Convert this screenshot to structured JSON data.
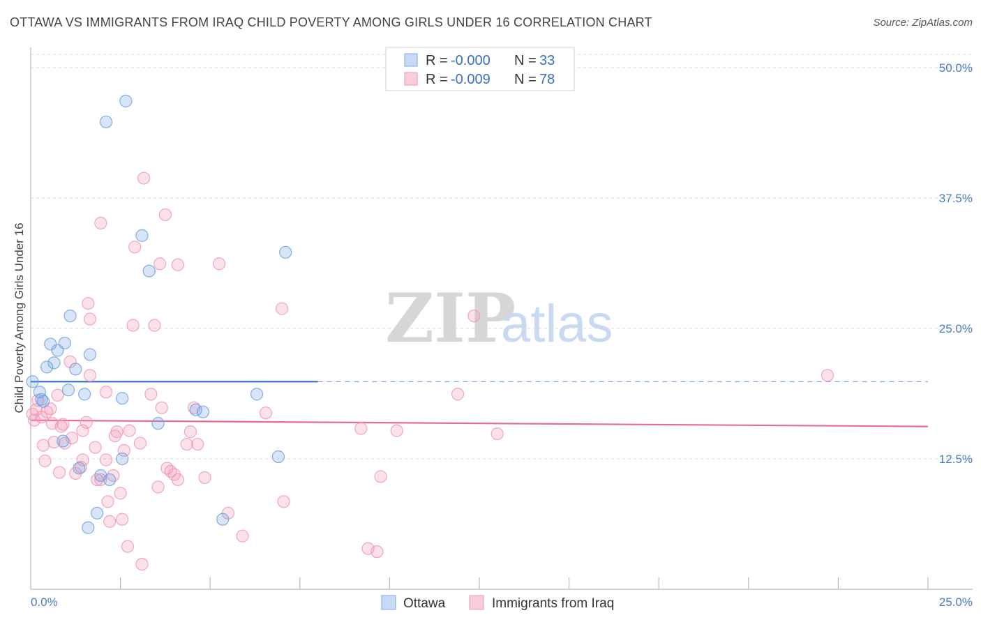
{
  "header": {
    "title": "OTTAWA VS IMMIGRANTS FROM IRAQ CHILD POVERTY AMONG GIRLS UNDER 16 CORRELATION CHART",
    "source": "Source: ZipAtlas.com"
  },
  "watermark": {
    "part1": "ZIP",
    "part2": "atlas"
  },
  "chart_data": {
    "type": "scatter",
    "title": "OTTAWA VS IMMIGRANTS FROM IRAQ CHILD POVERTY AMONG GIRLS UNDER 16 CORRELATION CHART",
    "xlabel": "",
    "ylabel": "Child Poverty Among Girls Under 16",
    "xlim": [
      0,
      25
    ],
    "ylim": [
      0,
      50
    ],
    "x_tick_labels": [
      "0.0%",
      "25.0%"
    ],
    "y_ticks": [
      12.5,
      25.0,
      37.5,
      50.0
    ],
    "y_tick_labels": [
      "12.5%",
      "25.0%",
      "37.5%",
      "50.0%"
    ],
    "grid": true,
    "legend_position": "top-center",
    "colors": {
      "ottawa": "#6fa1e0",
      "iraq": "#ef97b5",
      "ottawa_line": "#2f6fc8",
      "iraq_line": "#e56c96"
    },
    "legend": [
      {
        "r_label": "R = ",
        "r_value": "-0.000",
        "n_label": "N = ",
        "n_value": "33"
      },
      {
        "r_label": "R = ",
        "r_value": "-0.009",
        "n_label": "N = ",
        "n_value": "78"
      }
    ],
    "series": [
      {
        "name": "Ottawa",
        "trend": {
          "x0": 0,
          "y0": 19.9,
          "x1": 25,
          "y1": 19.9,
          "solid_until": 8.0
        },
        "points": [
          [
            0.05,
            19.9
          ],
          [
            0.25,
            18.9
          ],
          [
            0.3,
            18.2
          ],
          [
            0.45,
            21.3
          ],
          [
            0.55,
            23.5
          ],
          [
            0.65,
            21.7
          ],
          [
            0.75,
            22.9
          ],
          [
            0.9,
            14.2
          ],
          [
            0.95,
            23.6
          ],
          [
            1.05,
            19.1
          ],
          [
            1.1,
            26.2
          ],
          [
            1.25,
            21.1
          ],
          [
            1.35,
            11.6
          ],
          [
            1.5,
            18.7
          ],
          [
            1.6,
            5.9
          ],
          [
            1.65,
            22.5
          ],
          [
            1.85,
            7.3
          ],
          [
            1.95,
            10.9
          ],
          [
            2.1,
            44.8
          ],
          [
            2.2,
            10.5
          ],
          [
            2.55,
            12.5
          ],
          [
            2.55,
            18.3
          ],
          [
            2.65,
            46.8
          ],
          [
            3.1,
            33.9
          ],
          [
            3.3,
            30.5
          ],
          [
            3.55,
            15.9
          ],
          [
            4.6,
            17.2
          ],
          [
            4.8,
            17.0
          ],
          [
            5.35,
            6.7
          ],
          [
            6.3,
            18.7
          ],
          [
            6.9,
            12.7
          ],
          [
            7.1,
            32.3
          ],
          [
            0.35,
            18.0
          ]
        ]
      },
      {
        "name": "Immigrants from Iraq",
        "trend": {
          "x0": 0,
          "y0": 16.2,
          "x1": 25,
          "y1": 15.6,
          "solid_until": 25
        },
        "points": [
          [
            0.1,
            16.2
          ],
          [
            0.15,
            17.2
          ],
          [
            0.2,
            18.1
          ],
          [
            0.3,
            16.5
          ],
          [
            0.35,
            13.8
          ],
          [
            0.4,
            12.3
          ],
          [
            0.45,
            17.0
          ],
          [
            0.55,
            17.3
          ],
          [
            0.6,
            15.9
          ],
          [
            0.65,
            14.1
          ],
          [
            0.75,
            18.6
          ],
          [
            0.8,
            11.2
          ],
          [
            0.85,
            15.6
          ],
          [
            0.9,
            15.8
          ],
          [
            0.95,
            14.0
          ],
          [
            1.1,
            21.8
          ],
          [
            1.15,
            14.5
          ],
          [
            1.25,
            11.1
          ],
          [
            1.4,
            11.7
          ],
          [
            1.45,
            12.4
          ],
          [
            1.45,
            15.2
          ],
          [
            1.55,
            16.0
          ],
          [
            1.6,
            27.4
          ],
          [
            1.65,
            20.5
          ],
          [
            1.65,
            25.9
          ],
          [
            1.8,
            13.6
          ],
          [
            1.85,
            10.5
          ],
          [
            1.95,
            10.5
          ],
          [
            1.95,
            35.1
          ],
          [
            2.1,
            12.4
          ],
          [
            2.1,
            18.9
          ],
          [
            2.15,
            8.4
          ],
          [
            2.2,
            6.5
          ],
          [
            2.3,
            10.9
          ],
          [
            2.35,
            14.7
          ],
          [
            2.4,
            15.1
          ],
          [
            2.5,
            9.2
          ],
          [
            2.55,
            6.7
          ],
          [
            2.6,
            13.3
          ],
          [
            2.7,
            4.1
          ],
          [
            2.75,
            15.2
          ],
          [
            2.85,
            25.3
          ],
          [
            2.9,
            32.8
          ],
          [
            3.05,
            14.0
          ],
          [
            3.1,
            2.4
          ],
          [
            3.15,
            39.4
          ],
          [
            3.35,
            18.7
          ],
          [
            3.45,
            25.3
          ],
          [
            3.55,
            9.8
          ],
          [
            3.6,
            31.2
          ],
          [
            3.65,
            17.4
          ],
          [
            3.75,
            35.9
          ],
          [
            3.8,
            11.6
          ],
          [
            3.9,
            11.3
          ],
          [
            4.0,
            11.0
          ],
          [
            4.1,
            10.5
          ],
          [
            4.1,
            31.1
          ],
          [
            4.35,
            13.9
          ],
          [
            4.45,
            15.1
          ],
          [
            4.55,
            17.4
          ],
          [
            4.65,
            13.9
          ],
          [
            4.85,
            10.7
          ],
          [
            5.25,
            31.2
          ],
          [
            5.5,
            7.3
          ],
          [
            5.9,
            5.1
          ],
          [
            6.55,
            16.9
          ],
          [
            7.0,
            26.9
          ],
          [
            7.05,
            8.4
          ],
          [
            9.2,
            15.4
          ],
          [
            9.4,
            3.9
          ],
          [
            9.65,
            3.6
          ],
          [
            9.75,
            10.8
          ],
          [
            10.2,
            15.2
          ],
          [
            11.9,
            18.7
          ],
          [
            12.35,
            26.2
          ],
          [
            13.0,
            14.9
          ],
          [
            22.2,
            20.5
          ],
          [
            0.05,
            16.8
          ]
        ]
      }
    ]
  },
  "bottom_legend": [
    {
      "label": "Ottawa"
    },
    {
      "label": "Immigrants from Iraq"
    }
  ]
}
